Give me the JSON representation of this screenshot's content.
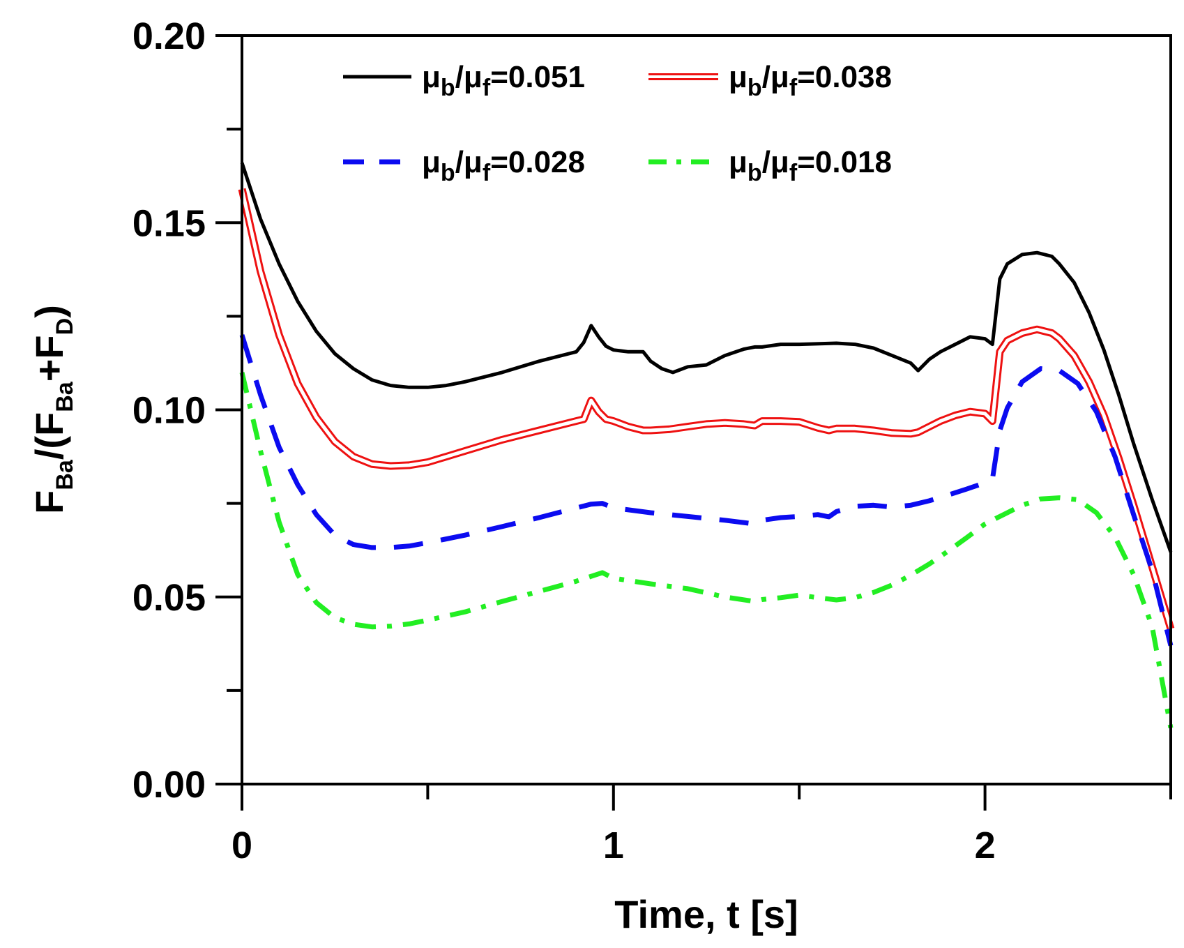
{
  "chart_data": {
    "type": "line",
    "title": "",
    "xlabel": "Time, t [s]",
    "ylabel": {
      "main": "F",
      "sub1": "Ba",
      "mid": "/(F",
      "sub2": "Ba",
      "plus": "+F",
      "sub3": "D",
      "close": ")"
    },
    "xlim": [
      0,
      2.5
    ],
    "ylim": [
      0,
      0.2
    ],
    "x_ticks": [
      0,
      1,
      2
    ],
    "x_tick_labels": [
      "0",
      "1",
      "2"
    ],
    "y_ticks": [
      0,
      0.05,
      0.1,
      0.15,
      0.2
    ],
    "y_tick_labels": [
      "0.00",
      "0.05",
      "0.10",
      "0.15",
      "0.20"
    ],
    "grid": false,
    "legend_position": "top",
    "series": [
      {
        "name": "μb/μf=0.051",
        "legend": {
          "a": "μ",
          "b": "b",
          "c": "/μ",
          "d": "f",
          "e": "=0.051"
        },
        "color": "#000000",
        "style": "solid",
        "x": [
          0,
          0.05,
          0.1,
          0.15,
          0.2,
          0.25,
          0.3,
          0.35,
          0.4,
          0.45,
          0.5,
          0.55,
          0.6,
          0.7,
          0.8,
          0.9,
          0.92,
          0.94,
          0.96,
          0.98,
          1.0,
          1.04,
          1.08,
          1.1,
          1.13,
          1.16,
          1.2,
          1.25,
          1.3,
          1.35,
          1.38,
          1.4,
          1.45,
          1.5,
          1.6,
          1.65,
          1.7,
          1.75,
          1.8,
          1.82,
          1.85,
          1.88,
          1.92,
          1.96,
          2.0,
          2.02,
          2.04,
          2.06,
          2.1,
          2.14,
          2.18,
          2.2,
          2.24,
          2.28,
          2.32,
          2.36,
          2.4,
          2.45,
          2.5
        ],
        "values": [
          0.166,
          0.151,
          0.139,
          0.129,
          0.121,
          0.115,
          0.111,
          0.108,
          0.1065,
          0.106,
          0.106,
          0.1065,
          0.1075,
          0.11,
          0.113,
          0.1155,
          0.118,
          0.1225,
          0.1195,
          0.117,
          0.116,
          0.1155,
          0.1155,
          0.113,
          0.111,
          0.11,
          0.1115,
          0.112,
          0.1145,
          0.1162,
          0.1168,
          0.1168,
          0.1175,
          0.1175,
          0.1178,
          0.1175,
          0.1165,
          0.1145,
          0.1125,
          0.1105,
          0.1135,
          0.1155,
          0.1175,
          0.1195,
          0.119,
          0.1175,
          0.135,
          0.139,
          0.1415,
          0.142,
          0.141,
          0.139,
          0.134,
          0.126,
          0.116,
          0.104,
          0.091,
          0.076,
          0.062
        ]
      },
      {
        "name": "μb/μf=0.038",
        "legend": {
          "a": "μ",
          "b": "b",
          "c": "/μ",
          "d": "f",
          "e": "=0.038"
        },
        "color": "#ee1111",
        "style": "double",
        "x": [
          0,
          0.05,
          0.1,
          0.15,
          0.2,
          0.25,
          0.3,
          0.35,
          0.4,
          0.45,
          0.5,
          0.55,
          0.6,
          0.7,
          0.8,
          0.9,
          0.92,
          0.94,
          0.96,
          0.98,
          1.0,
          1.04,
          1.08,
          1.1,
          1.15,
          1.2,
          1.25,
          1.3,
          1.35,
          1.38,
          1.4,
          1.45,
          1.5,
          1.55,
          1.58,
          1.6,
          1.65,
          1.7,
          1.75,
          1.8,
          1.82,
          1.85,
          1.88,
          1.92,
          1.96,
          2.0,
          2.02,
          2.04,
          2.06,
          2.1,
          2.14,
          2.18,
          2.2,
          2.24,
          2.28,
          2.32,
          2.36,
          2.4,
          2.45,
          2.5
        ],
        "values": [
          0.159,
          0.137,
          0.12,
          0.107,
          0.098,
          0.0915,
          0.0875,
          0.0855,
          0.085,
          0.0852,
          0.086,
          0.0875,
          0.089,
          0.092,
          0.0945,
          0.097,
          0.0975,
          0.1025,
          0.0995,
          0.0975,
          0.097,
          0.0955,
          0.0945,
          0.0945,
          0.0948,
          0.0955,
          0.0962,
          0.0965,
          0.0962,
          0.0958,
          0.097,
          0.097,
          0.0968,
          0.0952,
          0.0945,
          0.095,
          0.095,
          0.0945,
          0.0938,
          0.0936,
          0.094,
          0.0955,
          0.097,
          0.0985,
          0.0995,
          0.099,
          0.097,
          0.1155,
          0.1185,
          0.1205,
          0.1215,
          0.1205,
          0.119,
          0.1145,
          0.1075,
          0.0985,
          0.087,
          0.0745,
          0.058,
          0.0415
        ]
      },
      {
        "name": "μb/μf=0.028",
        "legend": {
          "a": "μ",
          "b": "b",
          "c": "/μ",
          "d": "f",
          "e": "=0.028"
        },
        "color": "#0b0bf0",
        "style": "dashed",
        "x": [
          0,
          0.05,
          0.1,
          0.15,
          0.2,
          0.25,
          0.3,
          0.35,
          0.4,
          0.45,
          0.5,
          0.6,
          0.7,
          0.8,
          0.9,
          0.94,
          0.97,
          1.0,
          1.1,
          1.2,
          1.3,
          1.38,
          1.4,
          1.45,
          1.5,
          1.55,
          1.58,
          1.6,
          1.65,
          1.7,
          1.75,
          1.8,
          1.85,
          1.9,
          1.95,
          2.0,
          2.02,
          2.04,
          2.06,
          2.1,
          2.15,
          2.2,
          2.25,
          2.3,
          2.35,
          2.4,
          2.45,
          2.5
        ],
        "values": [
          0.12,
          0.104,
          0.09,
          0.08,
          0.072,
          0.0665,
          0.064,
          0.0632,
          0.0632,
          0.0636,
          0.0645,
          0.0665,
          0.0688,
          0.0712,
          0.0738,
          0.0748,
          0.075,
          0.0738,
          0.0725,
          0.0715,
          0.0705,
          0.0695,
          0.0705,
          0.0712,
          0.0715,
          0.072,
          0.0714,
          0.0728,
          0.0742,
          0.0745,
          0.074,
          0.0745,
          0.0757,
          0.0772,
          0.0788,
          0.0805,
          0.0815,
          0.0945,
          0.1005,
          0.1075,
          0.111,
          0.1105,
          0.107,
          0.0995,
          0.0875,
          0.072,
          0.057,
          0.037
        ]
      },
      {
        "name": "μb/μf=0.018",
        "legend": {
          "a": "μ",
          "b": "b",
          "c": "/μ",
          "d": "f",
          "e": "=0.018"
        },
        "color": "#22ee22",
        "style": "dashdot",
        "x": [
          0,
          0.05,
          0.1,
          0.15,
          0.2,
          0.25,
          0.3,
          0.35,
          0.4,
          0.45,
          0.5,
          0.6,
          0.7,
          0.8,
          0.9,
          0.94,
          0.97,
          1.0,
          1.1,
          1.2,
          1.3,
          1.38,
          1.4,
          1.45,
          1.5,
          1.55,
          1.6,
          1.65,
          1.7,
          1.75,
          1.8,
          1.85,
          1.9,
          1.95,
          2.0,
          2.05,
          2.1,
          2.15,
          2.2,
          2.25,
          2.3,
          2.35,
          2.4,
          2.45,
          2.5
        ],
        "values": [
          0.11,
          0.089,
          0.07,
          0.056,
          0.0485,
          0.0445,
          0.0427,
          0.042,
          0.0422,
          0.0428,
          0.0438,
          0.046,
          0.0488,
          0.0515,
          0.0542,
          0.0555,
          0.0565,
          0.055,
          0.0535,
          0.0522,
          0.05,
          0.0488,
          0.0493,
          0.0498,
          0.0505,
          0.0498,
          0.0492,
          0.0498,
          0.0512,
          0.0532,
          0.0558,
          0.0588,
          0.0622,
          0.0658,
          0.0695,
          0.072,
          0.0745,
          0.0762,
          0.0765,
          0.076,
          0.0725,
          0.066,
          0.056,
          0.042,
          0.015
        ]
      }
    ]
  }
}
